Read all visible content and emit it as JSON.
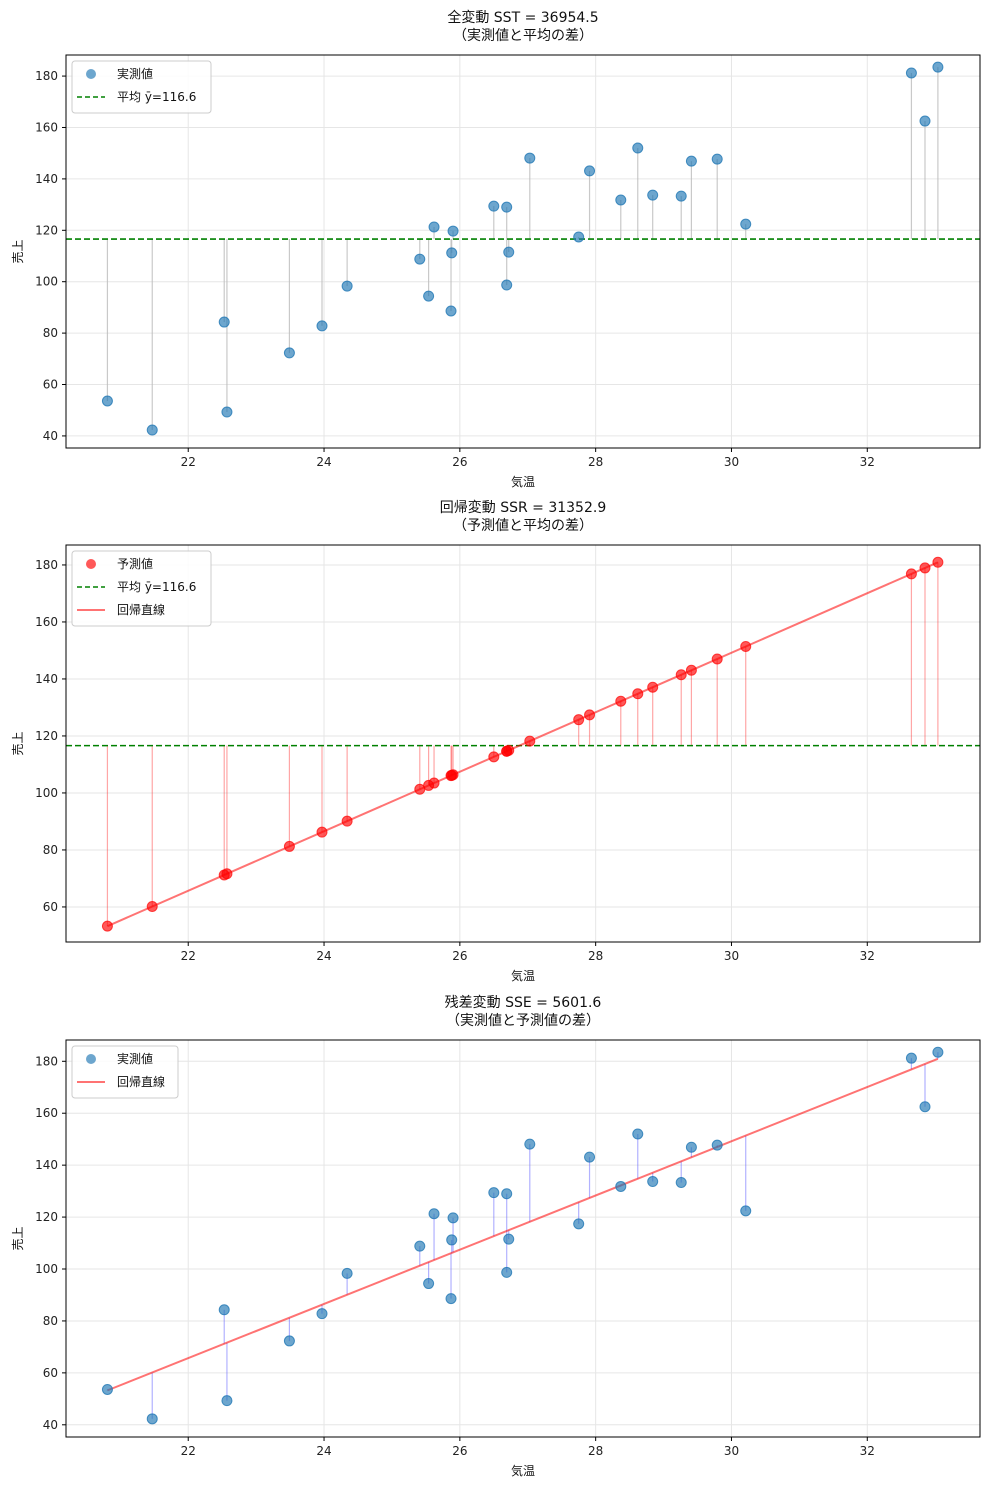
{
  "chart_data": [
    {
      "type": "scatter",
      "title": "全変動 SST = 36954.5",
      "subtitle": "（実測値と平均の差）",
      "xlabel": "気温",
      "ylabel": "売上",
      "xlim": [
        20.2,
        33.66
      ],
      "ylim": [
        35.3,
        188.2
      ],
      "xticks": [
        22,
        24,
        26,
        28,
        30,
        32
      ],
      "yticks": [
        40,
        60,
        80,
        100,
        120,
        140,
        160,
        180
      ],
      "legend": [
        "実測値",
        "平均 ȳ=116.6"
      ],
      "legend_loc": "upper-left",
      "grid": true,
      "mode": "sst"
    },
    {
      "type": "scatter",
      "title": "回帰変動 SSR = 31352.9",
      "subtitle": "（予測値と平均の差）",
      "xlabel": "気温",
      "ylabel": "売上",
      "xlim": [
        20.2,
        33.66
      ],
      "ylim": [
        47.7,
        187
      ],
      "xticks": [
        22,
        24,
        26,
        28,
        30,
        32
      ],
      "yticks": [
        60,
        80,
        100,
        120,
        140,
        160,
        180
      ],
      "legend": [
        "予測値",
        "平均 ȳ=116.6",
        "回帰直線"
      ],
      "legend_loc": "upper-left",
      "grid": true,
      "mode": "ssr"
    },
    {
      "type": "scatter",
      "title": "残差変動 SSE = 5601.6",
      "subtitle": "（実測値と予測値の差）",
      "xlabel": "気温",
      "ylabel": "売上",
      "xlim": [
        20.2,
        33.66
      ],
      "ylim": [
        35.3,
        188.2
      ],
      "xticks": [
        22,
        24,
        26,
        28,
        30,
        32
      ],
      "yticks": [
        40,
        60,
        80,
        100,
        120,
        140,
        160,
        180
      ],
      "legend": [
        "実測値",
        "回帰直線"
      ],
      "legend_loc": "upper-left",
      "grid": true,
      "mode": "sse"
    }
  ],
  "shared": {
    "mean_y": 116.6,
    "slope": 10.44,
    "intercept": -164.0,
    "x": [
      20.81,
      21.47,
      22.53,
      22.57,
      23.49,
      23.97,
      24.34,
      25.41,
      25.54,
      25.62,
      25.88,
      25.9,
      25.87,
      26.5,
      26.69,
      26.72,
      26.69,
      27.03,
      27.75,
      27.91,
      28.37,
      28.62,
      28.84,
      29.26,
      29.41,
      29.79,
      30.21,
      32.65,
      32.85,
      33.04
    ],
    "y": [
      53.6,
      42.3,
      84.3,
      49.3,
      72.3,
      82.8,
      98.3,
      108.8,
      94.4,
      121.3,
      111.2,
      119.7,
      88.6,
      129.4,
      129.0,
      111.5,
      98.7,
      148.1,
      117.4,
      143.1,
      131.8,
      152.0,
      133.7,
      133.3,
      146.9,
      147.7,
      122.4,
      181.2,
      162.5,
      183.5
    ]
  },
  "colors": {
    "actual": "#1f77b4",
    "pred": "#ff0000",
    "mean": "#008000",
    "line": "#ff6666",
    "sse": "#6666ff",
    "sst": "#bbbbbb"
  }
}
